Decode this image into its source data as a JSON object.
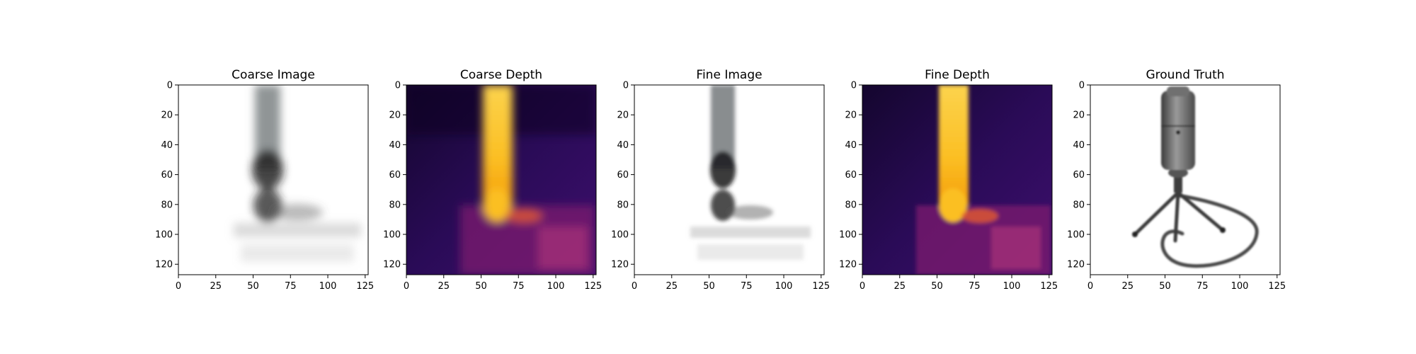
{
  "chart_data": [
    {
      "type": "heatmap",
      "title": "Coarse Image",
      "xlim": [
        0,
        127
      ],
      "ylim": [
        127,
        0
      ],
      "xticks": [
        0,
        25,
        50,
        75,
        100,
        125
      ],
      "yticks": [
        0,
        20,
        40,
        60,
        80,
        100,
        120
      ],
      "colormap": "rgb",
      "grid": false
    },
    {
      "type": "heatmap",
      "title": "Coarse Depth",
      "xlim": [
        0,
        127
      ],
      "ylim": [
        127,
        0
      ],
      "xticks": [
        0,
        25,
        50,
        75,
        100,
        125
      ],
      "yticks": [
        0,
        20,
        40,
        60,
        80,
        100,
        120
      ],
      "colormap": "inferno",
      "grid": false
    },
    {
      "type": "heatmap",
      "title": "Fine Image",
      "xlim": [
        0,
        127
      ],
      "ylim": [
        127,
        0
      ],
      "xticks": [
        0,
        25,
        50,
        75,
        100,
        125
      ],
      "yticks": [
        0,
        20,
        40,
        60,
        80,
        100,
        120
      ],
      "colormap": "rgb",
      "grid": false
    },
    {
      "type": "heatmap",
      "title": "Fine Depth",
      "xlim": [
        0,
        127
      ],
      "ylim": [
        127,
        0
      ],
      "xticks": [
        0,
        25,
        50,
        75,
        100,
        125
      ],
      "yticks": [
        0,
        20,
        40,
        60,
        80,
        100,
        120
      ],
      "colormap": "inferno",
      "grid": false
    },
    {
      "type": "heatmap",
      "title": "Ground Truth",
      "xlim": [
        0,
        127
      ],
      "ylim": [
        127,
        0
      ],
      "xticks": [
        0,
        25,
        50,
        75,
        100,
        125
      ],
      "yticks": [
        0,
        20,
        40,
        60,
        80,
        100,
        120
      ],
      "colormap": "rgb",
      "grid": false
    }
  ]
}
